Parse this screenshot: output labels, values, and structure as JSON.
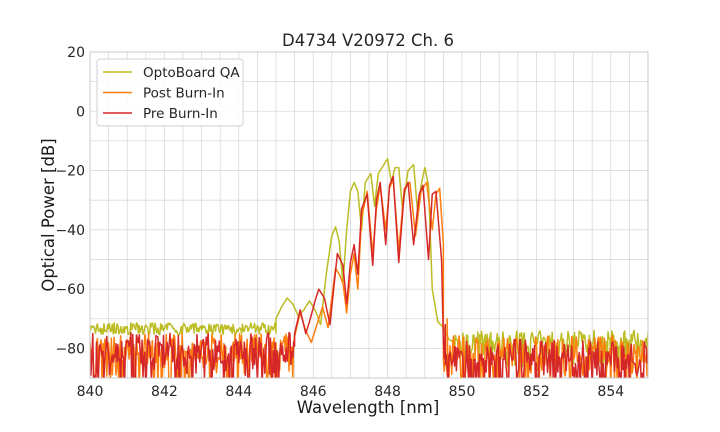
{
  "chart_data": {
    "type": "line",
    "title": "D4734 V20972 Ch. 6",
    "xlabel": "Wavelength [nm]",
    "ylabel": "Optical Power [dB]",
    "xlim": [
      840,
      855
    ],
    "ylim": [
      -90,
      20
    ],
    "xticks": [
      840,
      842,
      844,
      846,
      848,
      850,
      852,
      854
    ],
    "xtick_labels": [
      "840",
      "842",
      "844",
      "846",
      "848",
      "850",
      "852",
      "854"
    ],
    "yticks": [
      20,
      0,
      -20,
      -40,
      -60,
      -80
    ],
    "ytick_labels": [
      "20",
      "0",
      "−20",
      "−40",
      "−60",
      "−80"
    ],
    "grid": true,
    "legend_position": "top-left",
    "series": [
      {
        "name": "OptoBoard QA",
        "color": "#bcbd22",
        "noise_floor": {
          "left": {
            "x": [
              840,
              845.0
            ],
            "base": -73,
            "jitter": 4
          },
          "right": {
            "x": [
              849.8,
              855
            ],
            "base": -78,
            "jitter": 6
          }
        },
        "points": [
          [
            845.0,
            -70
          ],
          [
            845.15,
            -66
          ],
          [
            845.3,
            -63
          ],
          [
            845.45,
            -65
          ],
          [
            845.6,
            -69
          ],
          [
            845.75,
            -67
          ],
          [
            845.9,
            -64
          ],
          [
            846.05,
            -67
          ],
          [
            846.2,
            -72
          ],
          [
            846.35,
            -55
          ],
          [
            846.5,
            -42
          ],
          [
            846.6,
            -39
          ],
          [
            846.7,
            -44
          ],
          [
            846.8,
            -58
          ],
          [
            846.9,
            -40
          ],
          [
            847.0,
            -27
          ],
          [
            847.1,
            -24
          ],
          [
            847.2,
            -27
          ],
          [
            847.3,
            -40
          ],
          [
            847.4,
            -24
          ],
          [
            847.55,
            -21
          ],
          [
            847.65,
            -32
          ],
          [
            847.75,
            -21
          ],
          [
            847.9,
            -18
          ],
          [
            848.0,
            -16
          ],
          [
            848.1,
            -24
          ],
          [
            848.2,
            -19
          ],
          [
            848.3,
            -19
          ],
          [
            848.4,
            -33
          ],
          [
            848.55,
            -20
          ],
          [
            848.7,
            -18
          ],
          [
            848.8,
            -33
          ],
          [
            848.9,
            -25
          ],
          [
            849.0,
            -19
          ],
          [
            849.1,
            -25
          ],
          [
            849.2,
            -60
          ],
          [
            849.35,
            -71
          ],
          [
            849.5,
            -73
          ],
          [
            849.65,
            -77
          ],
          [
            849.8,
            -78
          ]
        ]
      },
      {
        "name": "Post Burn-In",
        "color": "#ff7f0e",
        "noise_floor": {
          "left": {
            "x": [
              840,
              845.5
            ],
            "base": -80,
            "jitter": 10
          },
          "right": {
            "x": [
              849.5,
              855
            ],
            "base": -82,
            "jitter": 9
          }
        },
        "points": [
          [
            845.5,
            -76
          ],
          [
            845.65,
            -68
          ],
          [
            845.8,
            -74
          ],
          [
            845.95,
            -78
          ],
          [
            846.1,
            -72
          ],
          [
            846.25,
            -66
          ],
          [
            846.4,
            -73
          ],
          [
            846.5,
            -63
          ],
          [
            846.6,
            -53
          ],
          [
            846.7,
            -55
          ],
          [
            846.8,
            -58
          ],
          [
            846.9,
            -68
          ],
          [
            847.0,
            -55
          ],
          [
            847.1,
            -48
          ],
          [
            847.2,
            -60
          ],
          [
            847.3,
            -36
          ],
          [
            847.45,
            -27
          ],
          [
            847.6,
            -48
          ],
          [
            847.7,
            -33
          ],
          [
            847.8,
            -25
          ],
          [
            847.95,
            -40
          ],
          [
            848.05,
            -26
          ],
          [
            848.15,
            -23
          ],
          [
            848.3,
            -47
          ],
          [
            848.45,
            -26
          ],
          [
            848.6,
            -24
          ],
          [
            848.75,
            -42
          ],
          [
            848.9,
            -27
          ],
          [
            849.05,
            -24
          ],
          [
            849.2,
            -40
          ],
          [
            849.3,
            -28
          ],
          [
            849.4,
            -26
          ],
          [
            849.5,
            -45
          ],
          [
            849.6,
            -70
          ],
          [
            849.7,
            -82
          ],
          [
            849.8,
            -85
          ]
        ]
      },
      {
        "name": "Pre Burn-In",
        "color": "#d62728",
        "noise_floor": {
          "left": {
            "x": [
              840,
              845.5
            ],
            "base": -80,
            "jitter": 11
          },
          "right": {
            "x": [
              849.5,
              855
            ],
            "base": -83,
            "jitter": 9
          }
        },
        "points": [
          [
            845.5,
            -75
          ],
          [
            845.65,
            -67
          ],
          [
            845.8,
            -75
          ],
          [
            845.9,
            -71
          ],
          [
            846.05,
            -64
          ],
          [
            846.15,
            -60
          ],
          [
            846.3,
            -63
          ],
          [
            846.45,
            -72
          ],
          [
            846.55,
            -60
          ],
          [
            846.65,
            -48
          ],
          [
            846.8,
            -52
          ],
          [
            846.9,
            -65
          ],
          [
            847.0,
            -51
          ],
          [
            847.1,
            -45
          ],
          [
            847.2,
            -55
          ],
          [
            847.3,
            -33
          ],
          [
            847.45,
            -28
          ],
          [
            847.6,
            -52
          ],
          [
            847.7,
            -30
          ],
          [
            847.8,
            -24
          ],
          [
            847.95,
            -45
          ],
          [
            848.05,
            -25
          ],
          [
            848.15,
            -22
          ],
          [
            848.3,
            -51
          ],
          [
            848.45,
            -27
          ],
          [
            848.55,
            -24
          ],
          [
            848.7,
            -45
          ],
          [
            848.85,
            -28
          ],
          [
            848.95,
            -25
          ],
          [
            849.1,
            -50
          ],
          [
            849.2,
            -28
          ],
          [
            849.3,
            -27
          ],
          [
            849.45,
            -50
          ],
          [
            849.55,
            -72
          ],
          [
            849.65,
            -84
          ],
          [
            849.8,
            -86
          ]
        ]
      }
    ]
  }
}
